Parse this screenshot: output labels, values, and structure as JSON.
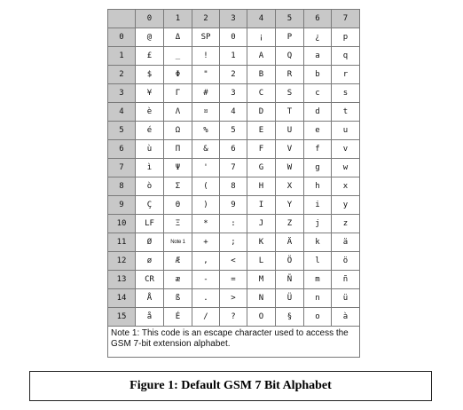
{
  "table": {
    "column_headers": [
      "0",
      "1",
      "2",
      "3",
      "4",
      "5",
      "6",
      "7"
    ],
    "rows": [
      {
        "label": "0",
        "cells": [
          "@",
          "Δ",
          "SP",
          "0",
          "¡",
          "P",
          "¿",
          "p"
        ]
      },
      {
        "label": "1",
        "cells": [
          "£",
          "_",
          "!",
          "1",
          "A",
          "Q",
          "a",
          "q"
        ]
      },
      {
        "label": "2",
        "cells": [
          "$",
          "Φ",
          "\"",
          "2",
          "B",
          "R",
          "b",
          "r"
        ]
      },
      {
        "label": "3",
        "cells": [
          "¥",
          "Γ",
          "#",
          "3",
          "C",
          "S",
          "c",
          "s"
        ]
      },
      {
        "label": "4",
        "cells": [
          "è",
          "Λ",
          "¤",
          "4",
          "D",
          "T",
          "d",
          "t"
        ]
      },
      {
        "label": "5",
        "cells": [
          "é",
          "Ω",
          "%",
          "5",
          "E",
          "U",
          "e",
          "u"
        ]
      },
      {
        "label": "6",
        "cells": [
          "ù",
          "Π",
          "&",
          "6",
          "F",
          "V",
          "f",
          "v"
        ]
      },
      {
        "label": "7",
        "cells": [
          "ì",
          "Ψ",
          "'",
          "7",
          "G",
          "W",
          "g",
          "w"
        ]
      },
      {
        "label": "8",
        "cells": [
          "ò",
          "Σ",
          "(",
          "8",
          "H",
          "X",
          "h",
          "x"
        ]
      },
      {
        "label": "9",
        "cells": [
          "Ç",
          "Θ",
          ")",
          "9",
          "I",
          "Y",
          "i",
          "y"
        ]
      },
      {
        "label": "10",
        "cells": [
          "LF",
          "Ξ",
          "*",
          ":",
          "J",
          "Z",
          "j",
          "z"
        ]
      },
      {
        "label": "11",
        "cells": [
          "Ø",
          "Note 1",
          "+",
          ";",
          "K",
          "Ä",
          "k",
          "ä"
        ]
      },
      {
        "label": "12",
        "cells": [
          "ø",
          "Æ",
          ",",
          "<",
          "L",
          "Ö",
          "l",
          "ö"
        ]
      },
      {
        "label": "13",
        "cells": [
          "CR",
          "æ",
          "-",
          "=",
          "M",
          "Ñ",
          "m",
          "ñ"
        ]
      },
      {
        "label": "14",
        "cells": [
          "Å",
          "ß",
          ".",
          ">",
          "N",
          "Ü",
          "n",
          "ü"
        ]
      },
      {
        "label": "15",
        "cells": [
          "å",
          "É",
          "/",
          "?",
          "O",
          "§",
          "o",
          "à"
        ]
      }
    ],
    "footnote": "Note 1: This code is an escape character used to access the GSM 7-bit extension alphabet."
  },
  "caption": "Figure 1: Default GSM 7 Bit Alphabet"
}
